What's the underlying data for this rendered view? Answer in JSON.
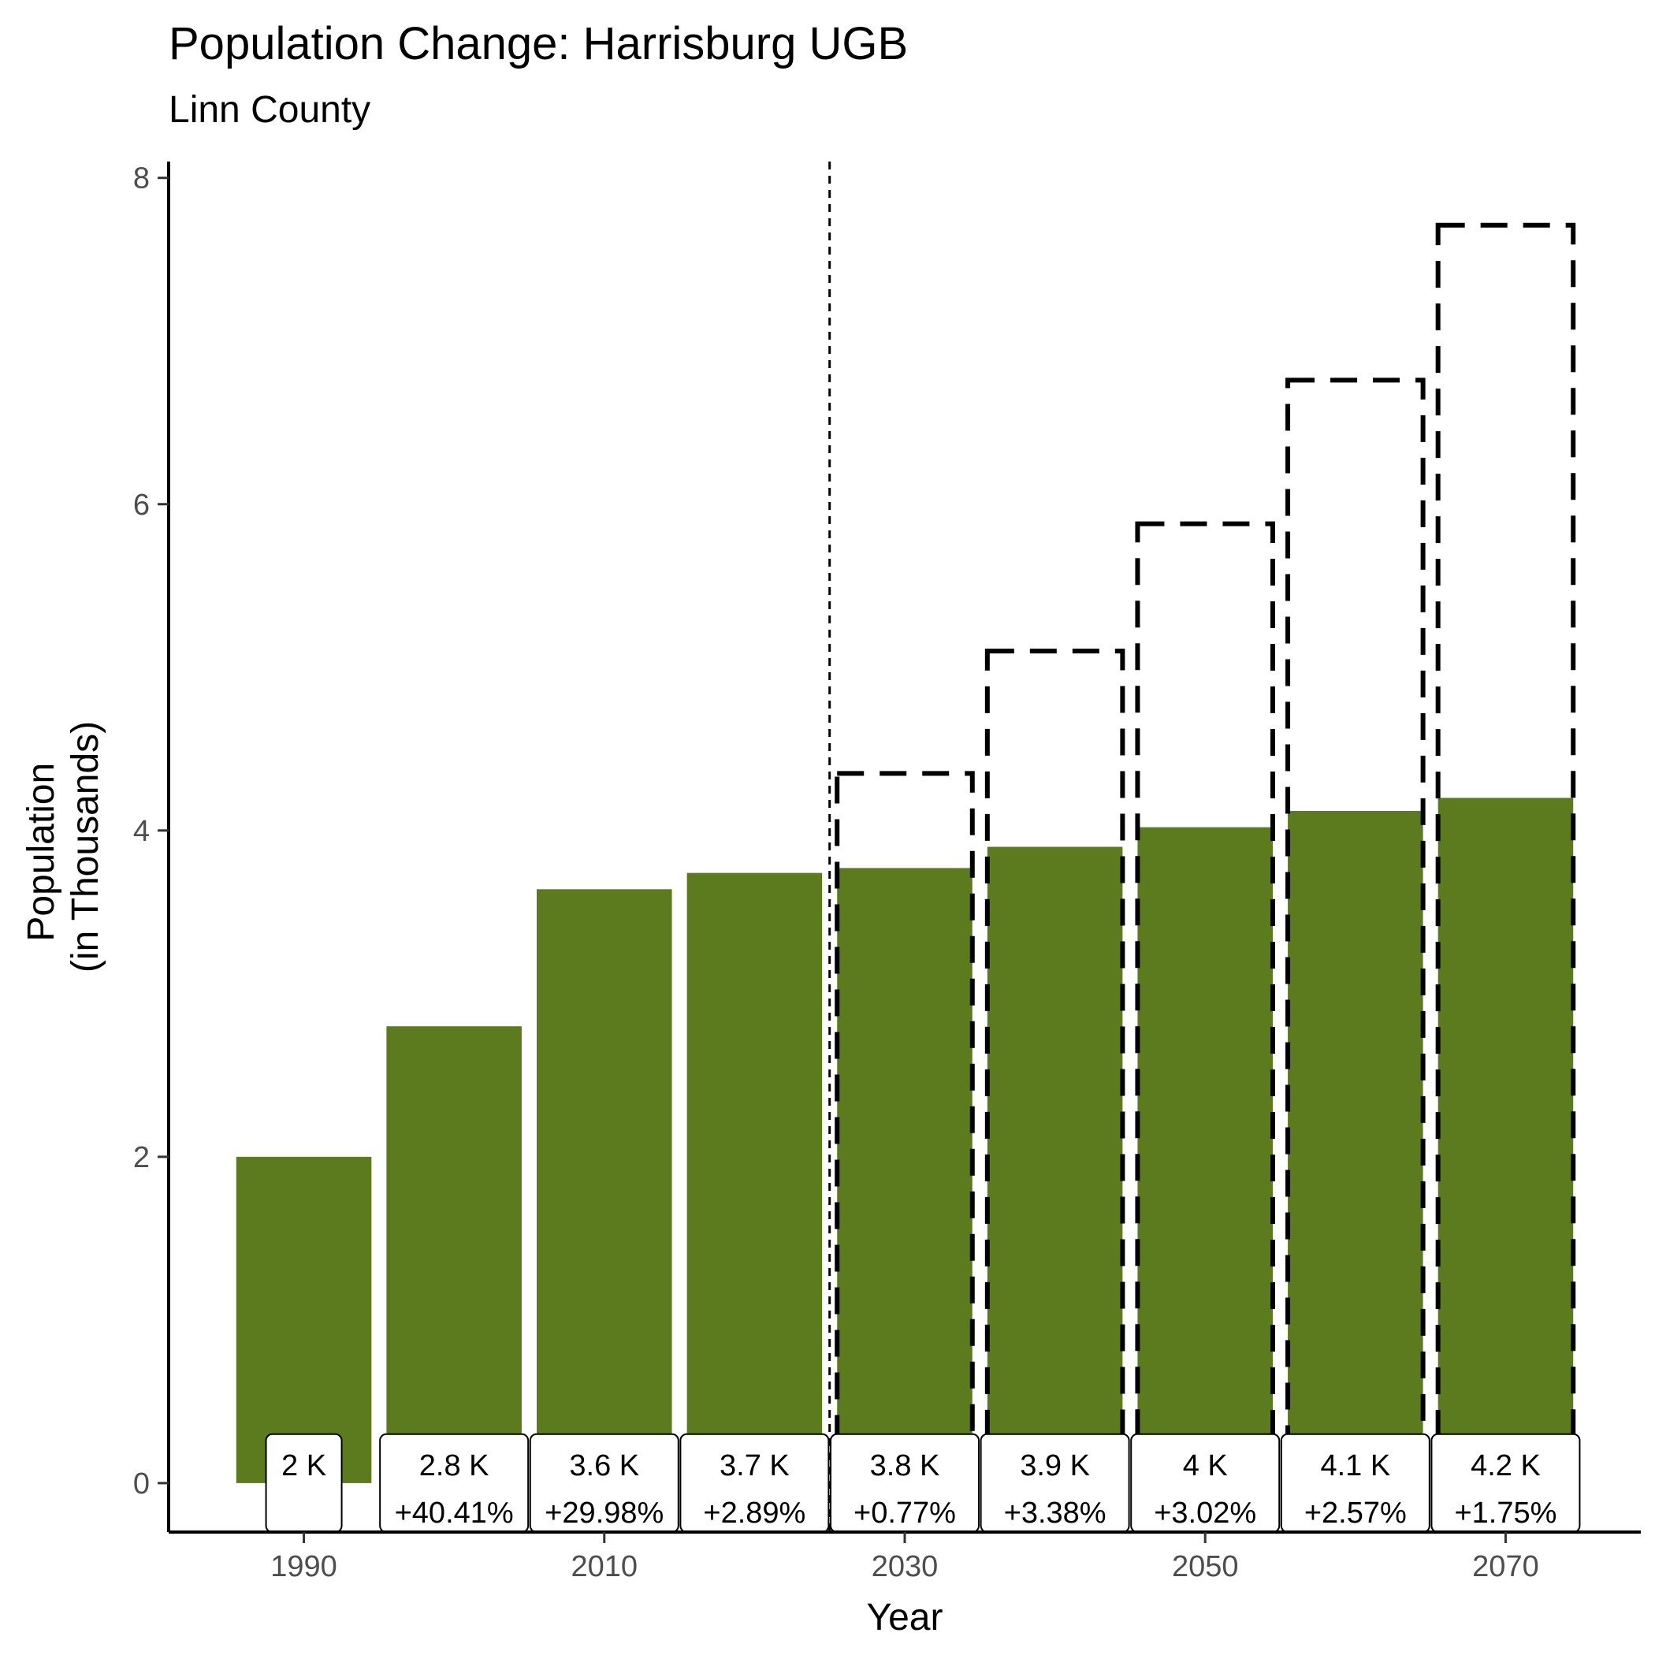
{
  "title": "Population Change: Harrisburg UGB",
  "subtitle": "Linn County",
  "colors": {
    "bar": "#5b7b1e",
    "projection_outline": "#000000",
    "label_bg": "#ffffff"
  },
  "chart_data": {
    "type": "bar",
    "title": "Population Change: Harrisburg UGB",
    "subtitle": "Linn County",
    "xlabel": "Year",
    "ylabel": [
      "Population",
      "(in Thousands)"
    ],
    "ylim": [
      -0.3,
      8.1
    ],
    "xlim": [
      1981,
      2079
    ],
    "yticks": [
      0,
      2,
      4,
      6,
      8
    ],
    "xticks": [
      1990,
      2010,
      2030,
      2050,
      2070
    ],
    "bar_width_years": 9,
    "divider_year": 2025,
    "grid": false,
    "series": [
      {
        "name": "",
        "values": [
          2.0,
          2.8,
          3.64,
          3.74,
          3.77,
          3.9,
          4.02,
          4.12,
          4.2
        ]
      }
    ],
    "x": [
      1990,
      2000,
      2010,
      2020,
      2030,
      2040,
      2050,
      2060,
      2070
    ],
    "projection_outline": {
      "x": [
        2030,
        2040,
        2050,
        2060,
        2070
      ],
      "values": [
        4.35,
        5.1,
        5.88,
        6.76,
        7.71
      ]
    },
    "labels": [
      {
        "value": "2 K",
        "change": ""
      },
      {
        "value": "2.8 K",
        "change": "+40.41%"
      },
      {
        "value": "3.6 K",
        "change": "+29.98%"
      },
      {
        "value": "3.7 K",
        "change": "+2.89%"
      },
      {
        "value": "3.8 K",
        "change": "+0.77%"
      },
      {
        "value": "3.9 K",
        "change": "+3.38%"
      },
      {
        "value": "4 K",
        "change": "+3.02%"
      },
      {
        "value": "4.1 K",
        "change": "+2.57%"
      },
      {
        "value": "4.2 K",
        "change": "+1.75%"
      }
    ]
  }
}
